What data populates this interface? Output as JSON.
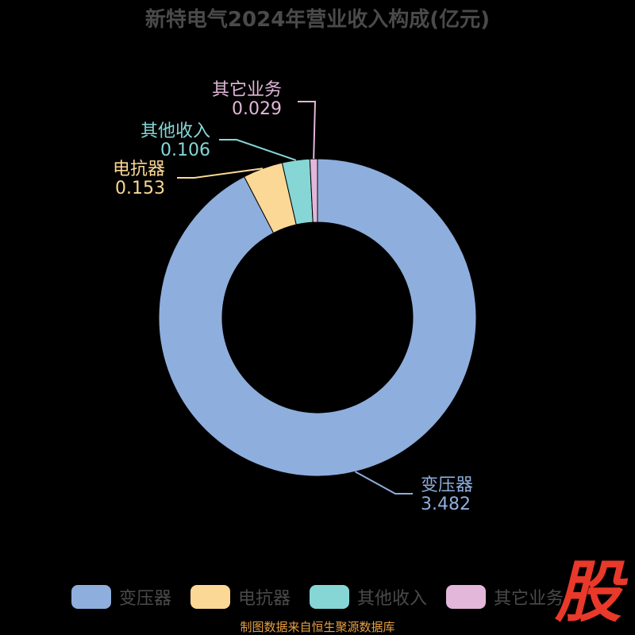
{
  "title": "新特电气2024年营业收入构成(亿元)",
  "source": "制图数据来自恒生聚源数据库",
  "logo_text": "股",
  "chart_data": {
    "type": "pie",
    "donut": true,
    "title": "新特电气2024年营业收入构成(亿元)",
    "categories": [
      "变压器",
      "电抗器",
      "其他收入",
      "其它业务"
    ],
    "values": [
      3.482,
      0.153,
      0.106,
      0.029
    ],
    "colors": [
      "#8eaedd",
      "#fbd896",
      "#86d6d6",
      "#e2b7d9"
    ],
    "legend": "bottom"
  }
}
